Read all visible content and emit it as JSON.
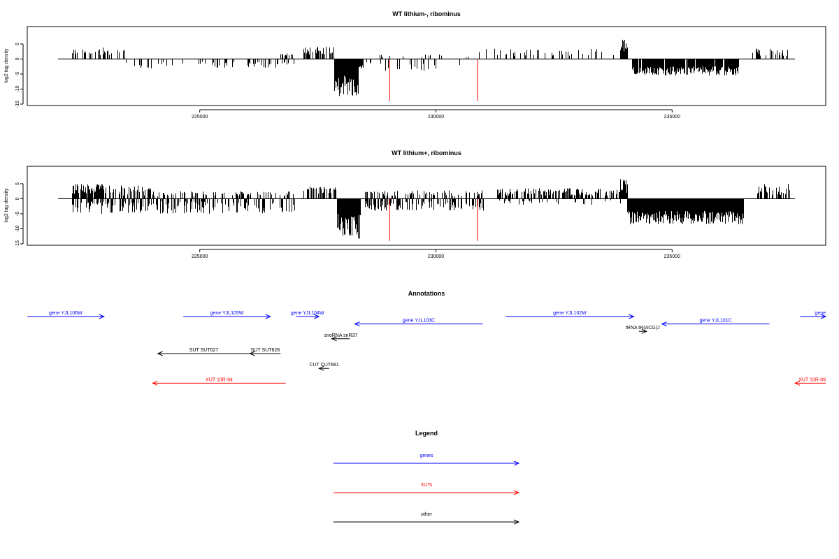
{
  "chart_data": [
    {
      "type": "bar",
      "title": "WT lithium-, ribominus",
      "ylabel": "log2 tag density",
      "xlim": [
        222000,
        237600
      ],
      "ylim": [
        -15,
        8
      ],
      "x_ticks": [
        225000,
        230000,
        235000
      ],
      "y_ticks": [
        5,
        0,
        -5,
        -10,
        -15
      ],
      "x_tick_labels": [
        "225000",
        "230000",
        "235000"
      ],
      "y_tick_labels": [
        "5",
        "0",
        "-5",
        "-10",
        "-15"
      ],
      "bar_color": "#000000",
      "marker_color": "#ff0000",
      "markers": [
        {
          "x": 229020,
          "y": -14
        },
        {
          "x": 230880,
          "y": -14
        }
      ],
      "regions": [
        {
          "from": 222300,
          "to": 223400,
          "sign": 1,
          "min": 1.2,
          "max": 3.8,
          "density": 0.28,
          "seed": 11
        },
        {
          "from": 223400,
          "to": 225000,
          "sign": -1,
          "min": 1.0,
          "max": 3.4,
          "density": 0.18,
          "seed": 12
        },
        {
          "from": 225000,
          "to": 227000,
          "sign": -1,
          "min": 0.8,
          "max": 3.0,
          "density": 0.22,
          "seed": 13
        },
        {
          "from": 226700,
          "to": 227000,
          "sign": 1,
          "min": 1.0,
          "max": 2.0,
          "density": 0.4,
          "seed": 14
        },
        {
          "from": 227200,
          "to": 227850,
          "sign": 1,
          "min": 1.5,
          "max": 4.2,
          "density": 0.6,
          "seed": 15
        },
        {
          "from": 227850,
          "to": 228350,
          "sign": -1,
          "min": 5.5,
          "max": 12.5,
          "density": 1.0,
          "seed": 16
        },
        {
          "from": 228350,
          "to": 228450,
          "sign": -1,
          "min": 2.0,
          "max": 4.0,
          "density": 1.0,
          "seed": 17
        },
        {
          "from": 228450,
          "to": 230500,
          "sign": -1,
          "min": 0.8,
          "max": 4.0,
          "density": 0.12,
          "seed": 18
        },
        {
          "from": 228800,
          "to": 230700,
          "sign": 1,
          "min": 0.5,
          "max": 1.5,
          "density": 0.1,
          "seed": 19
        },
        {
          "from": 230900,
          "to": 233900,
          "sign": 1,
          "min": 1.0,
          "max": 3.5,
          "density": 0.22,
          "seed": 20
        },
        {
          "from": 233900,
          "to": 234050,
          "sign": 1,
          "min": 2.0,
          "max": 7.0,
          "density": 1.0,
          "seed": 21
        },
        {
          "from": 234150,
          "to": 236400,
          "sign": -1,
          "min": 2.5,
          "max": 5.5,
          "density": 0.95,
          "seed": 22
        },
        {
          "from": 236700,
          "to": 237500,
          "sign": 1,
          "min": 1.0,
          "max": 3.8,
          "density": 0.3,
          "seed": 23
        }
      ]
    },
    {
      "type": "bar",
      "title": "WT lithium+, ribominus",
      "ylabel": "log2 tag density",
      "xlim": [
        222000,
        237600
      ],
      "ylim": [
        -15,
        8
      ],
      "x_ticks": [
        225000,
        230000,
        235000
      ],
      "y_ticks": [
        5,
        0,
        -5,
        -10,
        -15
      ],
      "x_tick_labels": [
        "225000",
        "230000",
        "235000"
      ],
      "y_tick_labels": [
        "5",
        "0",
        "-5",
        "-10",
        "-15"
      ],
      "bar_color": "#000000",
      "marker_color": "#ff0000",
      "markers": [
        {
          "x": 229020,
          "y": -14
        },
        {
          "x": 230880,
          "y": -14
        }
      ],
      "regions": [
        {
          "from": 222300,
          "to": 223000,
          "sign": 1,
          "min": 1.5,
          "max": 5.0,
          "density": 0.9,
          "seed": 31
        },
        {
          "from": 223000,
          "to": 224000,
          "sign": 1,
          "min": 1.0,
          "max": 4.5,
          "density": 0.5,
          "seed": 32
        },
        {
          "from": 222300,
          "to": 227000,
          "sign": -1,
          "min": 0.8,
          "max": 5.0,
          "density": 0.45,
          "seed": 33
        },
        {
          "from": 224000,
          "to": 227000,
          "sign": 1,
          "min": 0.8,
          "max": 2.5,
          "density": 0.3,
          "seed": 34
        },
        {
          "from": 227200,
          "to": 227900,
          "sign": 1,
          "min": 1.5,
          "max": 4.0,
          "density": 0.7,
          "seed": 35
        },
        {
          "from": 227900,
          "to": 228400,
          "sign": -1,
          "min": 5.0,
          "max": 13.5,
          "density": 1.0,
          "seed": 36
        },
        {
          "from": 228500,
          "to": 231000,
          "sign": -1,
          "min": 0.8,
          "max": 4.0,
          "density": 0.4,
          "seed": 37
        },
        {
          "from": 228500,
          "to": 231000,
          "sign": 1,
          "min": 0.8,
          "max": 2.8,
          "density": 0.35,
          "seed": 38
        },
        {
          "from": 231300,
          "to": 233900,
          "sign": 1,
          "min": 1.0,
          "max": 3.5,
          "density": 0.55,
          "seed": 39
        },
        {
          "from": 231300,
          "to": 233900,
          "sign": -1,
          "min": 0.5,
          "max": 2.0,
          "density": 0.15,
          "seed": 40
        },
        {
          "from": 233900,
          "to": 234050,
          "sign": 1,
          "min": 2.0,
          "max": 6.5,
          "density": 1.0,
          "seed": 41
        },
        {
          "from": 234050,
          "to": 236500,
          "sign": -1,
          "min": 4.0,
          "max": 8.5,
          "density": 1.0,
          "seed": 42
        },
        {
          "from": 236800,
          "to": 237500,
          "sign": 1,
          "min": 1.0,
          "max": 5.0,
          "density": 0.5,
          "seed": 43
        }
      ]
    }
  ],
  "annotations": {
    "title": "Annotations",
    "xlim": [
      222000,
      237600
    ],
    "colors": {
      "genes": "#0000ff",
      "XUTs": "#ff0000",
      "other": "#000000"
    },
    "features": [
      {
        "label": "gene YJL106W",
        "category": "genes",
        "start": 222000,
        "end": 223500,
        "strand": "+",
        "row": 0
      },
      {
        "label": "gene YJL105W",
        "category": "genes",
        "start": 225050,
        "end": 226750,
        "strand": "+",
        "row": 0
      },
      {
        "label": "gene YJL104W",
        "category": "genes",
        "start": 227250,
        "end": 227700,
        "strand": "+",
        "row": 0
      },
      {
        "label": "gene YJL103C",
        "category": "genes",
        "start": 228400,
        "end": 230900,
        "strand": "-",
        "row": 1
      },
      {
        "label": "gene YJL102W",
        "category": "genes",
        "start": 231350,
        "end": 233850,
        "strand": "+",
        "row": 0
      },
      {
        "label": "tRNA tR(ACG)J",
        "category": "other",
        "start": 233950,
        "end": 234100,
        "strand": "+",
        "row": 2
      },
      {
        "label": "gene YJL101C",
        "category": "genes",
        "start": 234400,
        "end": 236500,
        "strand": "-",
        "row": 1
      },
      {
        "label": "gene",
        "category": "genes",
        "start": 237100,
        "end": 237900,
        "strand": "+",
        "row": 0
      },
      {
        "label": "snoRNA snR37",
        "category": "other",
        "start": 227950,
        "end": 228300,
        "strand": "-",
        "row": 3
      },
      {
        "label": "SUT SUT627",
        "category": "other",
        "start": 224550,
        "end": 226350,
        "strand": "-",
        "row": 5
      },
      {
        "label": "SUT SUT628",
        "category": "other",
        "start": 226350,
        "end": 226950,
        "strand": "-",
        "row": 5
      },
      {
        "label": "CUT CUT681",
        "category": "other",
        "start": 227700,
        "end": 227900,
        "strand": "-",
        "row": 7
      },
      {
        "label": "XUT 10R-94",
        "category": "XUTs",
        "start": 224450,
        "end": 227050,
        "strand": "-",
        "row": 9
      },
      {
        "label": "XUT 10R-89",
        "category": "XUTs",
        "start": 237000,
        "end": 237900,
        "strand": "-",
        "row": 9
      }
    ]
  },
  "legend": {
    "title": "Legend",
    "items": [
      {
        "label": "genes",
        "color": "#0000ff"
      },
      {
        "label": "XUTs",
        "color": "#ff0000"
      },
      {
        "label": "other",
        "color": "#000000"
      }
    ]
  }
}
